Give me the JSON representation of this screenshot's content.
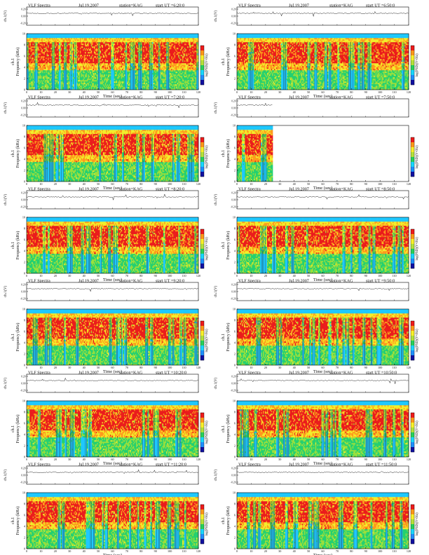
{
  "palette": {
    "spectrogram": [
      "#1a1aa6",
      "#1ec8ff",
      "#24d070",
      "#9adf3c",
      "#f2ee2a",
      "#ff9a1c",
      "#ea1c1c"
    ],
    "colorbar": [
      "#1010a0",
      "#1e90ff",
      "#18d8ff",
      "#28d05a",
      "#b4e13a",
      "#f8f02a",
      "#ff9818",
      "#ee1a1a"
    ],
    "trace": "#222222",
    "axis": "#000000"
  },
  "chart_data": [
    {
      "type": "heatmap",
      "title": "VLF Spectra",
      "date": "Jul.19,2007",
      "station": "station=KAG",
      "start_ut": "start  UT =6:20:0",
      "channel_label": "ch.1(V)",
      "trace_ticks": [
        "0.20",
        "0.00",
        "-0.20"
      ],
      "ylabel": "ch.1\nFrequency (kHz)",
      "xlabel": "Time (sec)",
      "xlim": [
        0,
        120
      ],
      "ylim": [
        0,
        10
      ],
      "x_ticks": [
        "0",
        "10",
        "20",
        "30",
        "40",
        "50",
        "60",
        "70",
        "80",
        "90",
        "100",
        "110",
        "120"
      ],
      "y_ticks": [
        "0",
        "2",
        "4",
        "6",
        "8",
        "10"
      ],
      "colorbar_label": "log(PSD)(V²/Hz)",
      "data_extent_sec": 120
    },
    {
      "type": "heatmap",
      "title": "VLF Spectra",
      "date": "Jul.19,2007",
      "station": "station=KAG",
      "start_ut": "start  UT =6:50:0",
      "channel_label": "ch.1(V)",
      "trace_ticks": [
        "0.20",
        "0.00",
        "-0.20"
      ],
      "ylabel": "ch.1\nFrequency (kHz)",
      "xlabel": "Time (sec)",
      "xlim": [
        0,
        120
      ],
      "ylim": [
        0,
        10
      ],
      "x_ticks": [
        "0",
        "10",
        "20",
        "30",
        "40",
        "50",
        "60",
        "70",
        "80",
        "90",
        "100",
        "110",
        "120"
      ],
      "y_ticks": [
        "0",
        "2",
        "4",
        "6",
        "8",
        "10"
      ],
      "colorbar_label": "log(PSD)(V²/Hz)",
      "data_extent_sec": 120
    },
    {
      "type": "heatmap",
      "title": "VLF Spectra",
      "date": "Jul.19,2007",
      "station": "station=KAG",
      "start_ut": "start  UT =7:20:0",
      "channel_label": "ch.1(V)",
      "trace_ticks": [
        "0.20",
        "0.00",
        "-0.20"
      ],
      "ylabel": "ch.1\nFrequency (kHz)",
      "xlabel": "Time (sec)",
      "xlim": [
        0,
        120
      ],
      "ylim": [
        0,
        10
      ],
      "x_ticks": [
        "0",
        "10",
        "20",
        "30",
        "40",
        "50",
        "60",
        "70",
        "80",
        "90",
        "100",
        "110",
        "120"
      ],
      "y_ticks": [
        "0",
        "2",
        "4",
        "6",
        "8",
        "10"
      ],
      "colorbar_label": "log(PSD)(V²/Hz)",
      "data_extent_sec": 120
    },
    {
      "type": "heatmap",
      "title": "VLF Spectra",
      "date": "Jul.19,2007",
      "station": "station=KAG",
      "start_ut": "start  UT =7:50:0",
      "channel_label": "ch.1(V)",
      "trace_ticks": [
        "0.20",
        "0.00",
        "-0.20"
      ],
      "ylabel": "ch.1\nFrequency (kHz)",
      "xlabel": "Time (sec)",
      "xlim": [
        0,
        120
      ],
      "ylim": [
        0,
        10
      ],
      "x_ticks": [
        "0",
        "10",
        "20",
        "30",
        "40",
        "50",
        "60",
        "70",
        "80",
        "90",
        "100",
        "110",
        "120"
      ],
      "y_ticks": [
        "0",
        "2",
        "4",
        "6",
        "8",
        "10"
      ],
      "colorbar_label": "log(PSD)(V²/Hz)",
      "data_extent_sec": 25
    },
    {
      "type": "heatmap",
      "title": "VLF Spectra",
      "date": "Jul.19,2007",
      "station": "station=KAG",
      "start_ut": "start  UT =8:20:0",
      "channel_label": "ch.1(V)",
      "trace_ticks": [
        "0.20",
        "0.00",
        "-0.20"
      ],
      "ylabel": "ch.1\nFrequency (kHz)",
      "xlabel": "Time (sec)",
      "xlim": [
        0,
        120
      ],
      "ylim": [
        0,
        10
      ],
      "x_ticks": [
        "0",
        "10",
        "20",
        "30",
        "40",
        "50",
        "60",
        "70",
        "80",
        "90",
        "100",
        "110",
        "120"
      ],
      "y_ticks": [
        "0",
        "2",
        "4",
        "6",
        "8",
        "10"
      ],
      "colorbar_label": "log(PSD)(V²/Hz)",
      "data_extent_sec": 120
    },
    {
      "type": "heatmap",
      "title": "VLF Spectra",
      "date": "Jul.19,2007",
      "station": "station=KAG",
      "start_ut": "start  UT =8:50:0",
      "channel_label": "ch.1(V)",
      "trace_ticks": [
        "0.20",
        "0.00",
        "-0.20"
      ],
      "ylabel": "ch.1\nFrequency (kHz)",
      "xlabel": "Time (sec)",
      "xlim": [
        0,
        120
      ],
      "ylim": [
        0,
        10
      ],
      "x_ticks": [
        "0",
        "10",
        "20",
        "30",
        "40",
        "50",
        "60",
        "70",
        "80",
        "90",
        "100",
        "110",
        "120"
      ],
      "y_ticks": [
        "0",
        "2",
        "4",
        "6",
        "8",
        "10"
      ],
      "colorbar_label": "log(PSD)(V²/Hz)",
      "data_extent_sec": 120
    },
    {
      "type": "heatmap",
      "title": "VLF Spectra",
      "date": "Jul.19,2007",
      "station": "station=KAG",
      "start_ut": "start  UT =9:20:0",
      "channel_label": "ch.1(V)",
      "trace_ticks": [
        "0.20",
        "0.00",
        "-0.20"
      ],
      "ylabel": "ch.1\nFrequency (kHz)",
      "xlabel": "Time (sec)",
      "xlim": [
        0,
        120
      ],
      "ylim": [
        0,
        10
      ],
      "x_ticks": [
        "0",
        "10",
        "20",
        "30",
        "40",
        "50",
        "60",
        "70",
        "80",
        "90",
        "100",
        "110",
        "120"
      ],
      "y_ticks": [
        "0",
        "2",
        "4",
        "6",
        "8",
        "10"
      ],
      "colorbar_label": "log(PSD)(V²/Hz)",
      "data_extent_sec": 120
    },
    {
      "type": "heatmap",
      "title": "VLF Spectra",
      "date": "Jul.19,2007",
      "station": "station=KAG",
      "start_ut": "start  UT =9:50:0",
      "channel_label": "ch.1(V)",
      "trace_ticks": [
        "0.20",
        "0.00",
        "-0.20"
      ],
      "ylabel": "ch.1\nFrequency (kHz)",
      "xlabel": "Time (sec)",
      "xlim": [
        0,
        120
      ],
      "ylim": [
        0,
        10
      ],
      "x_ticks": [
        "0",
        "10",
        "20",
        "30",
        "40",
        "50",
        "60",
        "70",
        "80",
        "90",
        "100",
        "110",
        "120"
      ],
      "y_ticks": [
        "0",
        "2",
        "4",
        "6",
        "8",
        "10"
      ],
      "colorbar_label": "log(PSD)(V²/Hz)",
      "data_extent_sec": 120
    },
    {
      "type": "heatmap",
      "title": "VLF Spectra",
      "date": "Jul.19,2007",
      "station": "station=KAG",
      "start_ut": "start  UT =10:20:0",
      "channel_label": "ch.1(V)",
      "trace_ticks": [
        "0.20",
        "0.00",
        "-0.20"
      ],
      "ylabel": "ch.1\nFrequency (kHz)",
      "xlabel": "Time (sec)",
      "xlim": [
        0,
        120
      ],
      "ylim": [
        0,
        10
      ],
      "x_ticks": [
        "0",
        "10",
        "20",
        "30",
        "40",
        "50",
        "60",
        "70",
        "80",
        "90",
        "100",
        "110",
        "120"
      ],
      "y_ticks": [
        "0",
        "2",
        "4",
        "6",
        "8",
        "10"
      ],
      "colorbar_label": "log(PSD)(V²/Hz)",
      "data_extent_sec": 120
    },
    {
      "type": "heatmap",
      "title": "VLF Spectra",
      "date": "Jul.19,2007",
      "station": "station=KAG",
      "start_ut": "start  UT =10:50:0",
      "channel_label": "ch.1(V)",
      "trace_ticks": [
        "0.20",
        "0.00",
        "-0.20"
      ],
      "ylabel": "ch.1\nFrequency (kHz)",
      "xlabel": "Time (sec)",
      "xlim": [
        0,
        120
      ],
      "ylim": [
        0,
        10
      ],
      "x_ticks": [
        "0",
        "10",
        "20",
        "30",
        "40",
        "50",
        "60",
        "70",
        "80",
        "90",
        "100",
        "110",
        "120"
      ],
      "y_ticks": [
        "0",
        "2",
        "4",
        "6",
        "8",
        "10"
      ],
      "colorbar_label": "log(PSD)(V²/Hz)",
      "data_extent_sec": 120
    },
    {
      "type": "heatmap",
      "title": "VLF Spectra",
      "date": "Jul.19,2007",
      "station": "station=KAG",
      "start_ut": "start  UT =11:20:0",
      "channel_label": "ch.1(V)",
      "trace_ticks": [
        "0.20",
        "0.00",
        "-0.20"
      ],
      "ylabel": "ch.1\nFrequency (kHz)",
      "xlabel": "Time (sec)",
      "xlim": [
        0,
        120
      ],
      "ylim": [
        0,
        10
      ],
      "x_ticks": [
        "0",
        "10",
        "20",
        "30",
        "40",
        "50",
        "60",
        "70",
        "80",
        "90",
        "100",
        "110",
        "120"
      ],
      "y_ticks": [
        "0",
        "2",
        "4",
        "6",
        "8",
        "10"
      ],
      "colorbar_label": "log(PSD)(V²/Hz)",
      "data_extent_sec": 120
    },
    {
      "type": "heatmap",
      "title": "VLF Spectra",
      "date": "Jul.19,2007",
      "station": "station=KAG",
      "start_ut": "start  UT =11:50:0",
      "channel_label": "ch.1(V)",
      "trace_ticks": [
        "0.20",
        "0.00",
        "-0.20"
      ],
      "ylabel": "ch.1\nFrequency (kHz)",
      "xlabel": "Time (sec)",
      "xlim": [
        0,
        120
      ],
      "ylim": [
        0,
        10
      ],
      "x_ticks": [
        "0",
        "10",
        "20",
        "30",
        "40",
        "50",
        "60",
        "70",
        "80",
        "90",
        "100",
        "110",
        "120"
      ],
      "y_ticks": [
        "0",
        "2",
        "4",
        "6",
        "8",
        "10"
      ],
      "colorbar_label": "log(PSD)(V²/Hz)",
      "data_extent_sec": 120
    }
  ]
}
